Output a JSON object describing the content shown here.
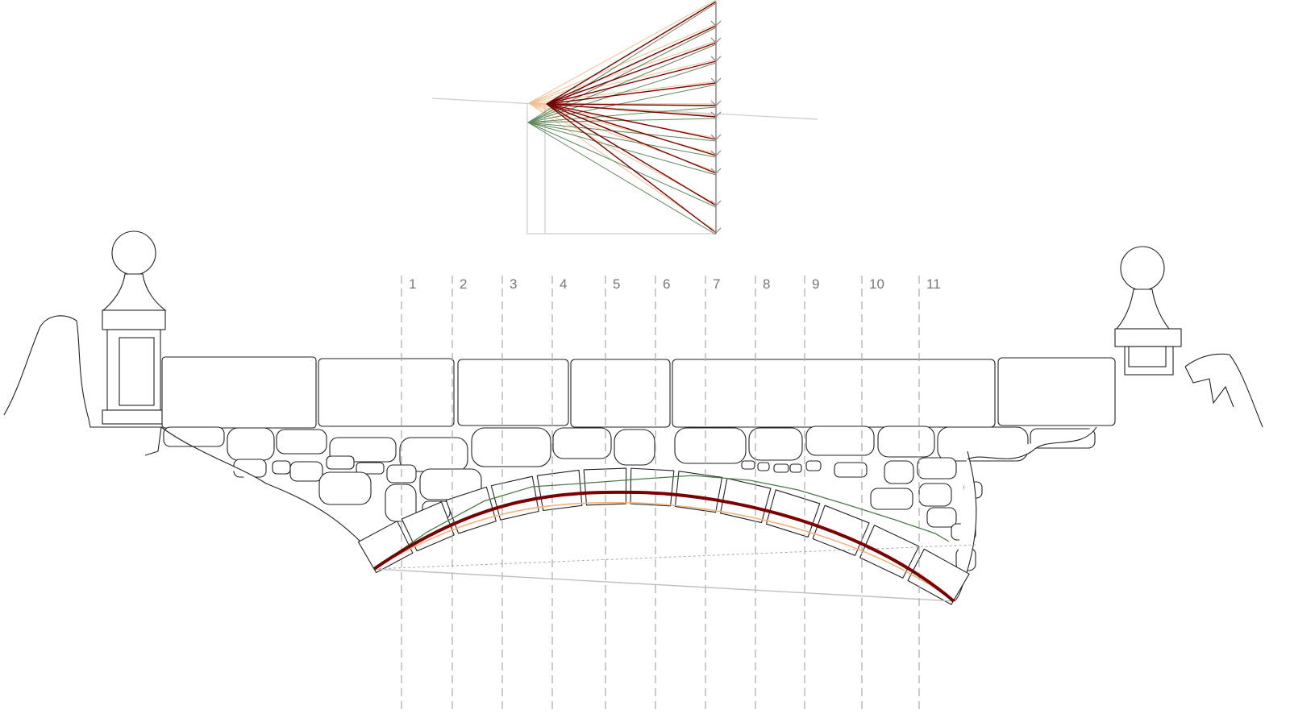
{
  "diagram": {
    "section_labels": [
      "1",
      "2",
      "3",
      "4",
      "5",
      "6",
      "7",
      "8",
      "9",
      "10",
      "11"
    ],
    "colors": {
      "thrust_main": "#7a0000",
      "thrust_lower": "#f2b27a",
      "thrust_upper": "#4a7a45",
      "load_line": "#888888",
      "guide": "#c8c8c8"
    }
  }
}
